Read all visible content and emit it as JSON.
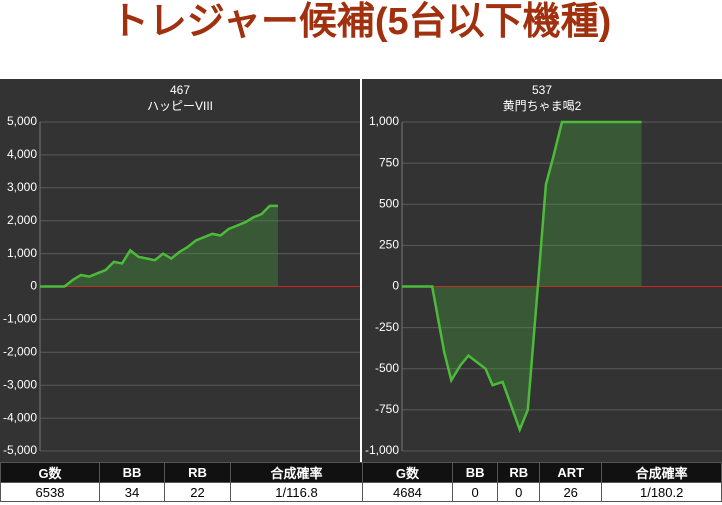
{
  "title": "トレジャー候補(5台以下機種)",
  "chart_data": [
    {
      "type": "line",
      "title": "467",
      "subtitle": "ハッピーVIII",
      "color": "#4cbb3a",
      "fill": "rgba(70,160,60,0.35)",
      "zero_color": "#d02020",
      "x": [
        0,
        1,
        2,
        3,
        4,
        5,
        6,
        7,
        8,
        9,
        10,
        11,
        12,
        13,
        14,
        15,
        16,
        17,
        18,
        19,
        20,
        21,
        22,
        23,
        24,
        25,
        26,
        27,
        28,
        29
      ],
      "values": [
        0,
        0,
        0,
        0,
        200,
        350,
        300,
        400,
        500,
        750,
        700,
        1100,
        900,
        850,
        800,
        1000,
        850,
        1050,
        1200,
        1400,
        1500,
        1600,
        1550,
        1750,
        1850,
        1950,
        2100,
        2200,
        2450,
        2450
      ],
      "xlim": [
        0,
        39
      ],
      "ylim": [
        -5000,
        5000
      ],
      "yticks": [
        {
          "value": 5000,
          "label": "5,000"
        },
        {
          "value": 4000,
          "label": "4,000"
        },
        {
          "value": 3000,
          "label": "3,000"
        },
        {
          "value": 2000,
          "label": "2,000"
        },
        {
          "value": 1000,
          "label": "1,000"
        },
        0,
        {
          "value": -1000,
          "label": "-1,000"
        },
        {
          "value": -2000,
          "label": "-2,000"
        },
        {
          "value": -3000,
          "label": "-3,000"
        },
        {
          "value": -4000,
          "label": "-4,000"
        },
        {
          "value": -5000,
          "label": "-5,000"
        }
      ],
      "grid": true,
      "table": {
        "headers": [
          "G数",
          "BB",
          "RB",
          "合成確率"
        ],
        "row": [
          6538,
          34,
          22,
          "1/116.8"
        ]
      }
    },
    {
      "type": "line",
      "title": "537",
      "subtitle": "黄門ちゃま喝2",
      "color": "#4cbb3a",
      "fill": "rgba(70,160,60,0.35)",
      "zero_color": "#d02020",
      "x": [
        0,
        30,
        42,
        49,
        58,
        66,
        83,
        90,
        100,
        117,
        125,
        135,
        143,
        150,
        159,
        238
      ],
      "values": [
        0,
        0,
        -400,
        -570,
        -480,
        -420,
        -500,
        -600,
        -580,
        -870,
        -750,
        0,
        620,
        780,
        1000,
        1000
      ],
      "xlim": [
        0,
        318
      ],
      "ylim": [
        -1000,
        1000
      ],
      "yticks": [
        {
          "value": 1000,
          "label": "1,000"
        },
        750,
        500,
        250,
        0,
        -250,
        -500,
        -750,
        {
          "value": -1000,
          "label": "-1,000"
        }
      ],
      "grid": true,
      "table": {
        "headers": [
          "G数",
          "BB",
          "RB",
          "ART",
          "合成確率"
        ],
        "row": [
          4684,
          0,
          0,
          26,
          "1/180.2"
        ]
      }
    }
  ]
}
